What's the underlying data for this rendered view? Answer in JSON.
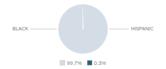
{
  "chart_data": {
    "type": "pie",
    "values": [
      99.7,
      0.3
    ],
    "value_labels": [
      "99.7%",
      "0.3%"
    ],
    "colors": [
      "#d4dde6",
      "#2e5f7a"
    ],
    "annotations": [
      "BLACK",
      "HISPANIC"
    ],
    "legend": "bottom"
  }
}
